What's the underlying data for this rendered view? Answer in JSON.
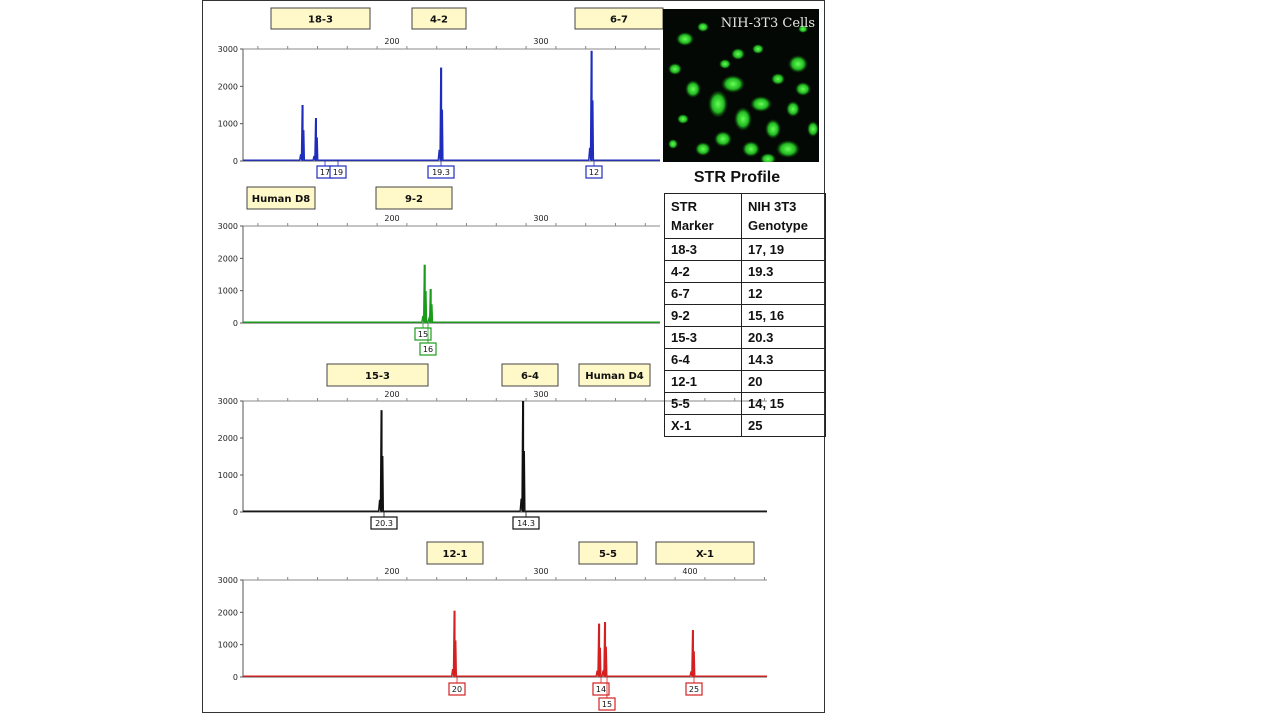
{
  "chart_data": [
    {
      "type": "line",
      "color": "#1f2dbd",
      "x_ticks": [
        200,
        300
      ],
      "y_ticks": [
        0,
        1000,
        2000,
        3000
      ],
      "markers": [
        {
          "label": "18-3",
          "color": "#fff8c8"
        },
        {
          "label": "4-2",
          "color": "#fff8c8"
        },
        {
          "label": "6-7",
          "color": "#fff8c8"
        }
      ],
      "peaks": [
        {
          "bp": 140,
          "height": 1500,
          "allele": "17"
        },
        {
          "bp": 149,
          "height": 1150,
          "allele": "19"
        },
        {
          "bp": 233,
          "height": 2500,
          "allele": "19.3"
        },
        {
          "bp": 334,
          "height": 2950,
          "allele": "12"
        }
      ]
    },
    {
      "type": "line",
      "color": "#1a9c1a",
      "x_ticks": [
        200,
        300
      ],
      "y_ticks": [
        0,
        1000,
        2000,
        3000
      ],
      "markers": [
        {
          "label": "Human D8",
          "color": "#fff8c8"
        },
        {
          "label": "9-2",
          "color": "#fff8c8"
        }
      ],
      "peaks": [
        {
          "bp": 222,
          "height": 1800,
          "allele": "15"
        },
        {
          "bp": 226,
          "height": 1050,
          "allele": "16"
        }
      ]
    },
    {
      "type": "line",
      "color": "#111111",
      "x_ticks": [
        200,
        300
      ],
      "y_ticks": [
        0,
        1000,
        2000,
        3000
      ],
      "markers": [
        {
          "label": "15-3",
          "color": "#fff8c8"
        },
        {
          "label": "6-4",
          "color": "#fff8c8"
        },
        {
          "label": "Human D4",
          "color": "#fff8c8"
        }
      ],
      "peaks": [
        {
          "bp": 193,
          "height": 2750,
          "allele": "20.3"
        },
        {
          "bp": 288,
          "height": 3000,
          "allele": "14.3"
        }
      ]
    },
    {
      "type": "line",
      "color": "#d42020",
      "x_ticks": [
        200,
        300,
        400
      ],
      "y_ticks": [
        0,
        1000,
        2000,
        3000
      ],
      "markers": [
        {
          "label": "12-1",
          "color": "#fff8c8"
        },
        {
          "label": "5-5",
          "color": "#fff8c8"
        },
        {
          "label": "X-1",
          "color": "#fff8c8"
        }
      ],
      "peaks": [
        {
          "bp": 242,
          "height": 2050,
          "allele": "20"
        },
        {
          "bp": 339,
          "height": 1650,
          "allele": "14"
        },
        {
          "bp": 343,
          "height": 1700,
          "allele": "15"
        },
        {
          "bp": 402,
          "height": 1450,
          "allele": "25"
        }
      ]
    }
  ],
  "cells_image": {
    "title": "NIH-3T3 Cells"
  },
  "str_profile": {
    "title": "STR Profile",
    "headers": [
      "STR Marker",
      "NIH 3T3 Genotype"
    ],
    "rows": [
      [
        "18-3",
        "17, 19"
      ],
      [
        "4-2",
        "19.3"
      ],
      [
        "6-7",
        "12"
      ],
      [
        "9-2",
        "15, 16"
      ],
      [
        "15-3",
        "20.3"
      ],
      [
        "6-4",
        "14.3"
      ],
      [
        "12-1",
        "20"
      ],
      [
        "5-5",
        "14, 15"
      ],
      [
        "X-1",
        "25"
      ]
    ]
  }
}
